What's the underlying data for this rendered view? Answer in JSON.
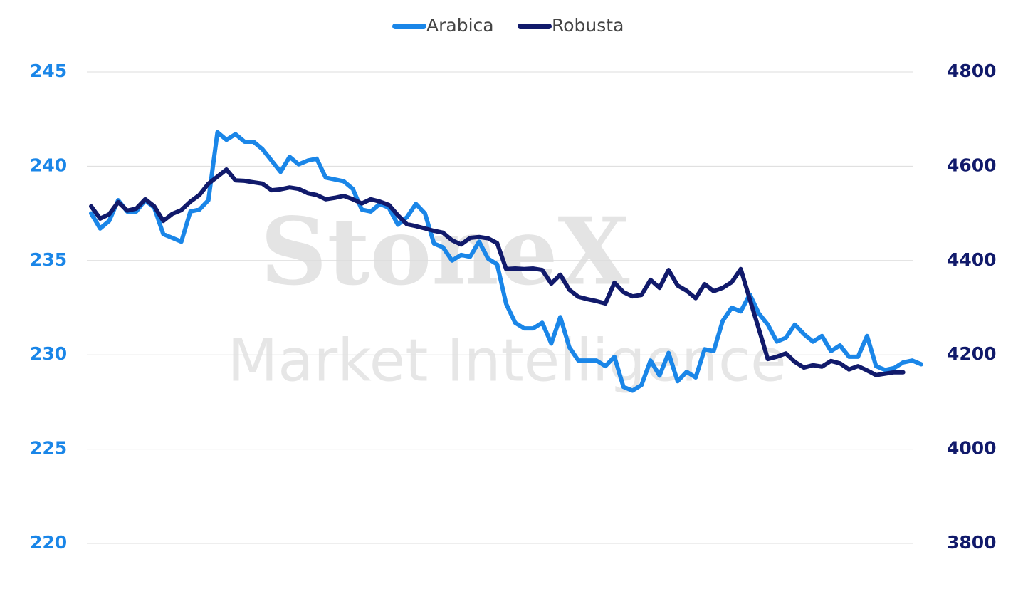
{
  "chart_data": {
    "type": "line",
    "watermark": [
      "StoneX",
      "Market Intelligence"
    ],
    "categories": [
      null,
      null,
      null,
      null,
      null,
      null,
      null,
      null,
      null,
      null,
      null,
      null,
      null,
      null,
      null,
      null,
      null,
      null,
      null,
      null,
      null,
      null,
      null,
      null,
      null,
      null,
      null,
      null,
      null,
      null,
      null,
      null,
      null,
      null,
      null,
      null,
      null,
      null,
      null,
      null,
      null,
      null,
      null,
      null,
      null,
      null,
      null,
      null,
      null,
      null,
      null,
      null,
      null,
      null,
      null,
      null,
      null,
      null,
      null,
      null,
      null,
      null,
      null,
      null,
      null,
      null,
      null,
      null,
      null,
      null,
      null,
      null,
      null,
      null,
      null,
      null,
      null,
      null,
      null,
      null,
      null,
      null,
      null,
      null,
      null,
      null,
      null,
      null,
      null,
      null,
      null,
      null,
      null
    ],
    "series": [
      {
        "name": "Arabica",
        "color": "#1a86e8",
        "axis": "y",
        "values": [
          237.5,
          236.7,
          237.1,
          238.2,
          237.6,
          237.6,
          238.2,
          237.8,
          236.4,
          236.2,
          236.0,
          237.6,
          237.7,
          238.2,
          241.8,
          241.4,
          241.7,
          241.3,
          241.3,
          240.9,
          240.3,
          239.7,
          240.5,
          240.1,
          240.3,
          240.4,
          239.4,
          239.3,
          239.2,
          238.8,
          237.7,
          237.6,
          238.0,
          237.8,
          236.9,
          237.3,
          238.0,
          237.5,
          235.9,
          235.7,
          235.0,
          235.3,
          235.2,
          236.0,
          235.1,
          234.8,
          232.7,
          231.7,
          231.4,
          231.4,
          231.7,
          230.6,
          232.0,
          230.4,
          229.7,
          229.7,
          229.7,
          229.4,
          229.9,
          228.3,
          228.1,
          228.4,
          229.7,
          228.9,
          230.1,
          228.6,
          229.1,
          228.8,
          230.3,
          230.2,
          231.8,
          232.5,
          232.3,
          233.2,
          232.2,
          231.6,
          230.7,
          230.9,
          231.6,
          231.1,
          230.7,
          231.0,
          230.2,
          230.5,
          229.9,
          229.9,
          231.0,
          229.4,
          229.2,
          229.3,
          229.6,
          229.7,
          229.5
        ]
      },
      {
        "name": "Robusta",
        "color": "#111a6b",
        "axis": "y2",
        "values": [
          4515,
          4489,
          4498,
          4524,
          4506,
          4510,
          4530,
          4515,
          4484,
          4499,
          4507,
          4525,
          4539,
          4563,
          4578,
          4593,
          4570,
          4569,
          4566,
          4563,
          4549,
          4551,
          4555,
          4552,
          4543,
          4539,
          4530,
          4533,
          4537,
          4530,
          4521,
          4530,
          4525,
          4518,
          4496,
          4477,
          4473,
          4468,
          4463,
          4459,
          4443,
          4434,
          4448,
          4450,
          4447,
          4437,
          4382,
          4383,
          4382,
          4383,
          4380,
          4351,
          4370,
          4338,
          4323,
          4318,
          4314,
          4309,
          4353,
          4333,
          4324,
          4327,
          4359,
          4342,
          4380,
          4347,
          4336,
          4320,
          4350,
          4335,
          4342,
          4354,
          4382,
          4318,
          4255,
          4191,
          4196,
          4203,
          4185,
          4173,
          4178,
          4175,
          4187,
          4182,
          4169,
          4176,
          4167,
          4157,
          4160,
          4163,
          4163,
          null,
          null
        ]
      }
    ],
    "ylim": [
      220,
      245
    ],
    "yticks": [
      220,
      225,
      230,
      235,
      240,
      245
    ],
    "y2lim": [
      3800,
      4800
    ],
    "y2ticks": [
      3800,
      4000,
      4200,
      4400,
      4600,
      4800
    ],
    "grid": true,
    "legend": "top"
  }
}
